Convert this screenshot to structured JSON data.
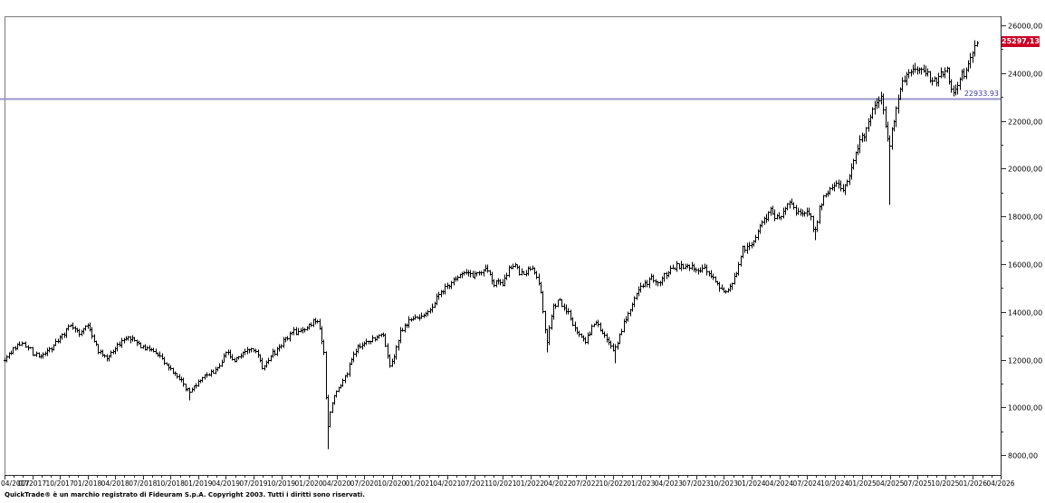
{
  "window": {
    "background": "#ffffff"
  },
  "chart": {
    "last_price": {
      "text": "25297,13",
      "value": 25297.13
    },
    "reference_line": {
      "label": "22933.93",
      "value": 22933.93
    },
    "colors": {
      "bar": "#000000",
      "reference_line": "#9898cc",
      "reference_text": "#3a3aa6",
      "last_price_bg": "#cc0026",
      "last_price_fg": "#ffffff",
      "axis": "#2a2a2a",
      "border": "#7a7a7a",
      "label": "#000000"
    }
  },
  "chart_data": {
    "type": "ohlc",
    "title": "",
    "series_name": "price",
    "x_axis": {
      "tick_labels": [
        "04/2017",
        "07/2017",
        "10/2017",
        "01/2018",
        "04/2018",
        "07/2018",
        "10/2018",
        "01/2019",
        "04/2019",
        "07/2019",
        "10/2019",
        "01/2020",
        "04/2020",
        "07/2020",
        "10/2020",
        "01/2021",
        "04/2021",
        "07/2021",
        "10/2021",
        "01/2022",
        "04/2022",
        "07/2022",
        "10/2022",
        "01/2023",
        "04/2023",
        "07/2023",
        "10/2023",
        "01/2024",
        "04/2024",
        "07/2024",
        "10/2024",
        "01/2025",
        "04/2025",
        "07/2025",
        "10/2025",
        "01/2026",
        "04/2026"
      ],
      "range_months": 108,
      "minor_tick": "monthly"
    },
    "y_axis": {
      "ticks": [
        {
          "value": 26000,
          "label": "26000,00"
        },
        {
          "value": 24000,
          "label": "24000,00"
        },
        {
          "value": 22000,
          "label": "22000,00"
        },
        {
          "value": 20000,
          "label": "20000,00"
        },
        {
          "value": 18000,
          "label": "18000,00"
        },
        {
          "value": 16000,
          "label": "16000,00"
        },
        {
          "value": 14000,
          "label": "14000,00"
        },
        {
          "value": 12000,
          "label": "12000,00"
        },
        {
          "value": 10000,
          "label": "10000,00"
        },
        {
          "value": 8000,
          "label": "8000,00"
        }
      ],
      "minor_step": 1000,
      "visible_range": [
        7170,
        26380
      ],
      "side": "right"
    },
    "grid": false,
    "legend": false,
    "weeks": 458,
    "t_max_months": 105.4,
    "last_close": 25297.13,
    "reference_value": 22933.93,
    "anchors": [
      [
        0,
        12060
      ],
      [
        1,
        12480
      ],
      [
        2,
        12780
      ],
      [
        3,
        12300
      ],
      [
        4,
        12160
      ],
      [
        5,
        12500
      ],
      [
        6,
        12950
      ],
      [
        7,
        13440
      ],
      [
        8,
        13150
      ],
      [
        9,
        13480
      ],
      [
        10,
        12450
      ],
      [
        11,
        12100
      ],
      [
        12,
        12450
      ],
      [
        13,
        12950
      ],
      [
        14,
        12800
      ],
      [
        15,
        12550
      ],
      [
        16,
        12350
      ],
      [
        17,
        12150
      ],
      [
        18,
        11550
      ],
      [
        19,
        11250
      ],
      [
        20,
        10650
      ],
      [
        21,
        11150
      ],
      [
        22,
        11450
      ],
      [
        23,
        11550
      ],
      [
        24,
        12250
      ],
      [
        25,
        12050
      ],
      [
        26,
        12400
      ],
      [
        27,
        12500
      ],
      [
        28,
        11700
      ],
      [
        29,
        12250
      ],
      [
        30,
        12650
      ],
      [
        31,
        13150
      ],
      [
        32,
        13250
      ],
      [
        33,
        13500
      ],
      [
        34,
        13650
      ],
      [
        34.6,
        12300
      ],
      [
        35,
        9000
      ],
      [
        35.4,
        10200
      ],
      [
        36,
        10700
      ],
      [
        37,
        11400
      ],
      [
        38,
        12350
      ],
      [
        39,
        12750
      ],
      [
        40,
        12900
      ],
      [
        41,
        13100
      ],
      [
        41.8,
        11650
      ],
      [
        42.5,
        12600
      ],
      [
        43,
        13250
      ],
      [
        44,
        13700
      ],
      [
        45,
        13900
      ],
      [
        46,
        14050
      ],
      [
        47,
        14700
      ],
      [
        48,
        15150
      ],
      [
        49,
        15450
      ],
      [
        50,
        15600
      ],
      [
        51,
        15550
      ],
      [
        52,
        15900
      ],
      [
        53,
        15300
      ],
      [
        54,
        15150
      ],
      [
        55,
        16050
      ],
      [
        56,
        15650
      ],
      [
        57,
        15950
      ],
      [
        58,
        15150
      ],
      [
        58.8,
        12700
      ],
      [
        59.4,
        14200
      ],
      [
        60,
        14500
      ],
      [
        61,
        14050
      ],
      [
        62,
        13200
      ],
      [
        63,
        12800
      ],
      [
        64,
        13650
      ],
      [
        65,
        13050
      ],
      [
        66,
        12300
      ],
      [
        67,
        13450
      ],
      [
        68,
        14350
      ],
      [
        69,
        15050
      ],
      [
        70,
        15400
      ],
      [
        71,
        15250
      ],
      [
        72,
        15800
      ],
      [
        73,
        15900
      ],
      [
        74,
        16050
      ],
      [
        75,
        15750
      ],
      [
        76,
        15850
      ],
      [
        77,
        15250
      ],
      [
        78,
        14850
      ],
      [
        79,
        15300
      ],
      [
        80,
        16700
      ],
      [
        81,
        16900
      ],
      [
        82,
        17700
      ],
      [
        83,
        18350
      ],
      [
        84,
        17950
      ],
      [
        85,
        18650
      ],
      [
        86,
        18150
      ],
      [
        87,
        18400
      ],
      [
        87.8,
        17300
      ],
      [
        88.5,
        18600
      ],
      [
        89,
        18900
      ],
      [
        90,
        19350
      ],
      [
        91,
        19250
      ],
      [
        92,
        20300
      ],
      [
        93,
        21400
      ],
      [
        94,
        22350
      ],
      [
        95,
        23100
      ],
      [
        95.8,
        20900
      ],
      [
        96.3,
        21900
      ],
      [
        97,
        23300
      ],
      [
        98,
        23900
      ],
      [
        99,
        24300
      ],
      [
        100,
        23950
      ],
      [
        101,
        23650
      ],
      [
        102,
        24350
      ],
      [
        102.8,
        23100
      ],
      [
        103.5,
        23800
      ],
      [
        104,
        24100
      ],
      [
        105,
        24900
      ],
      [
        105.4,
        25297.13
      ]
    ],
    "spike_lows": [
      {
        "t": 20,
        "low": 10330
      },
      {
        "t": 35,
        "low": 8255
      },
      {
        "t": 58.9,
        "low": 12330
      },
      {
        "t": 66.2,
        "low": 11860
      },
      {
        "t": 87.8,
        "low": 17030
      },
      {
        "t": 95.9,
        "low": 18490
      }
    ]
  },
  "footer": {
    "copyright": "QuickTrade® è un marchio registrato di Fideuram S.p.A. Copyright 2003. Tutti i diritti sono riservati."
  }
}
